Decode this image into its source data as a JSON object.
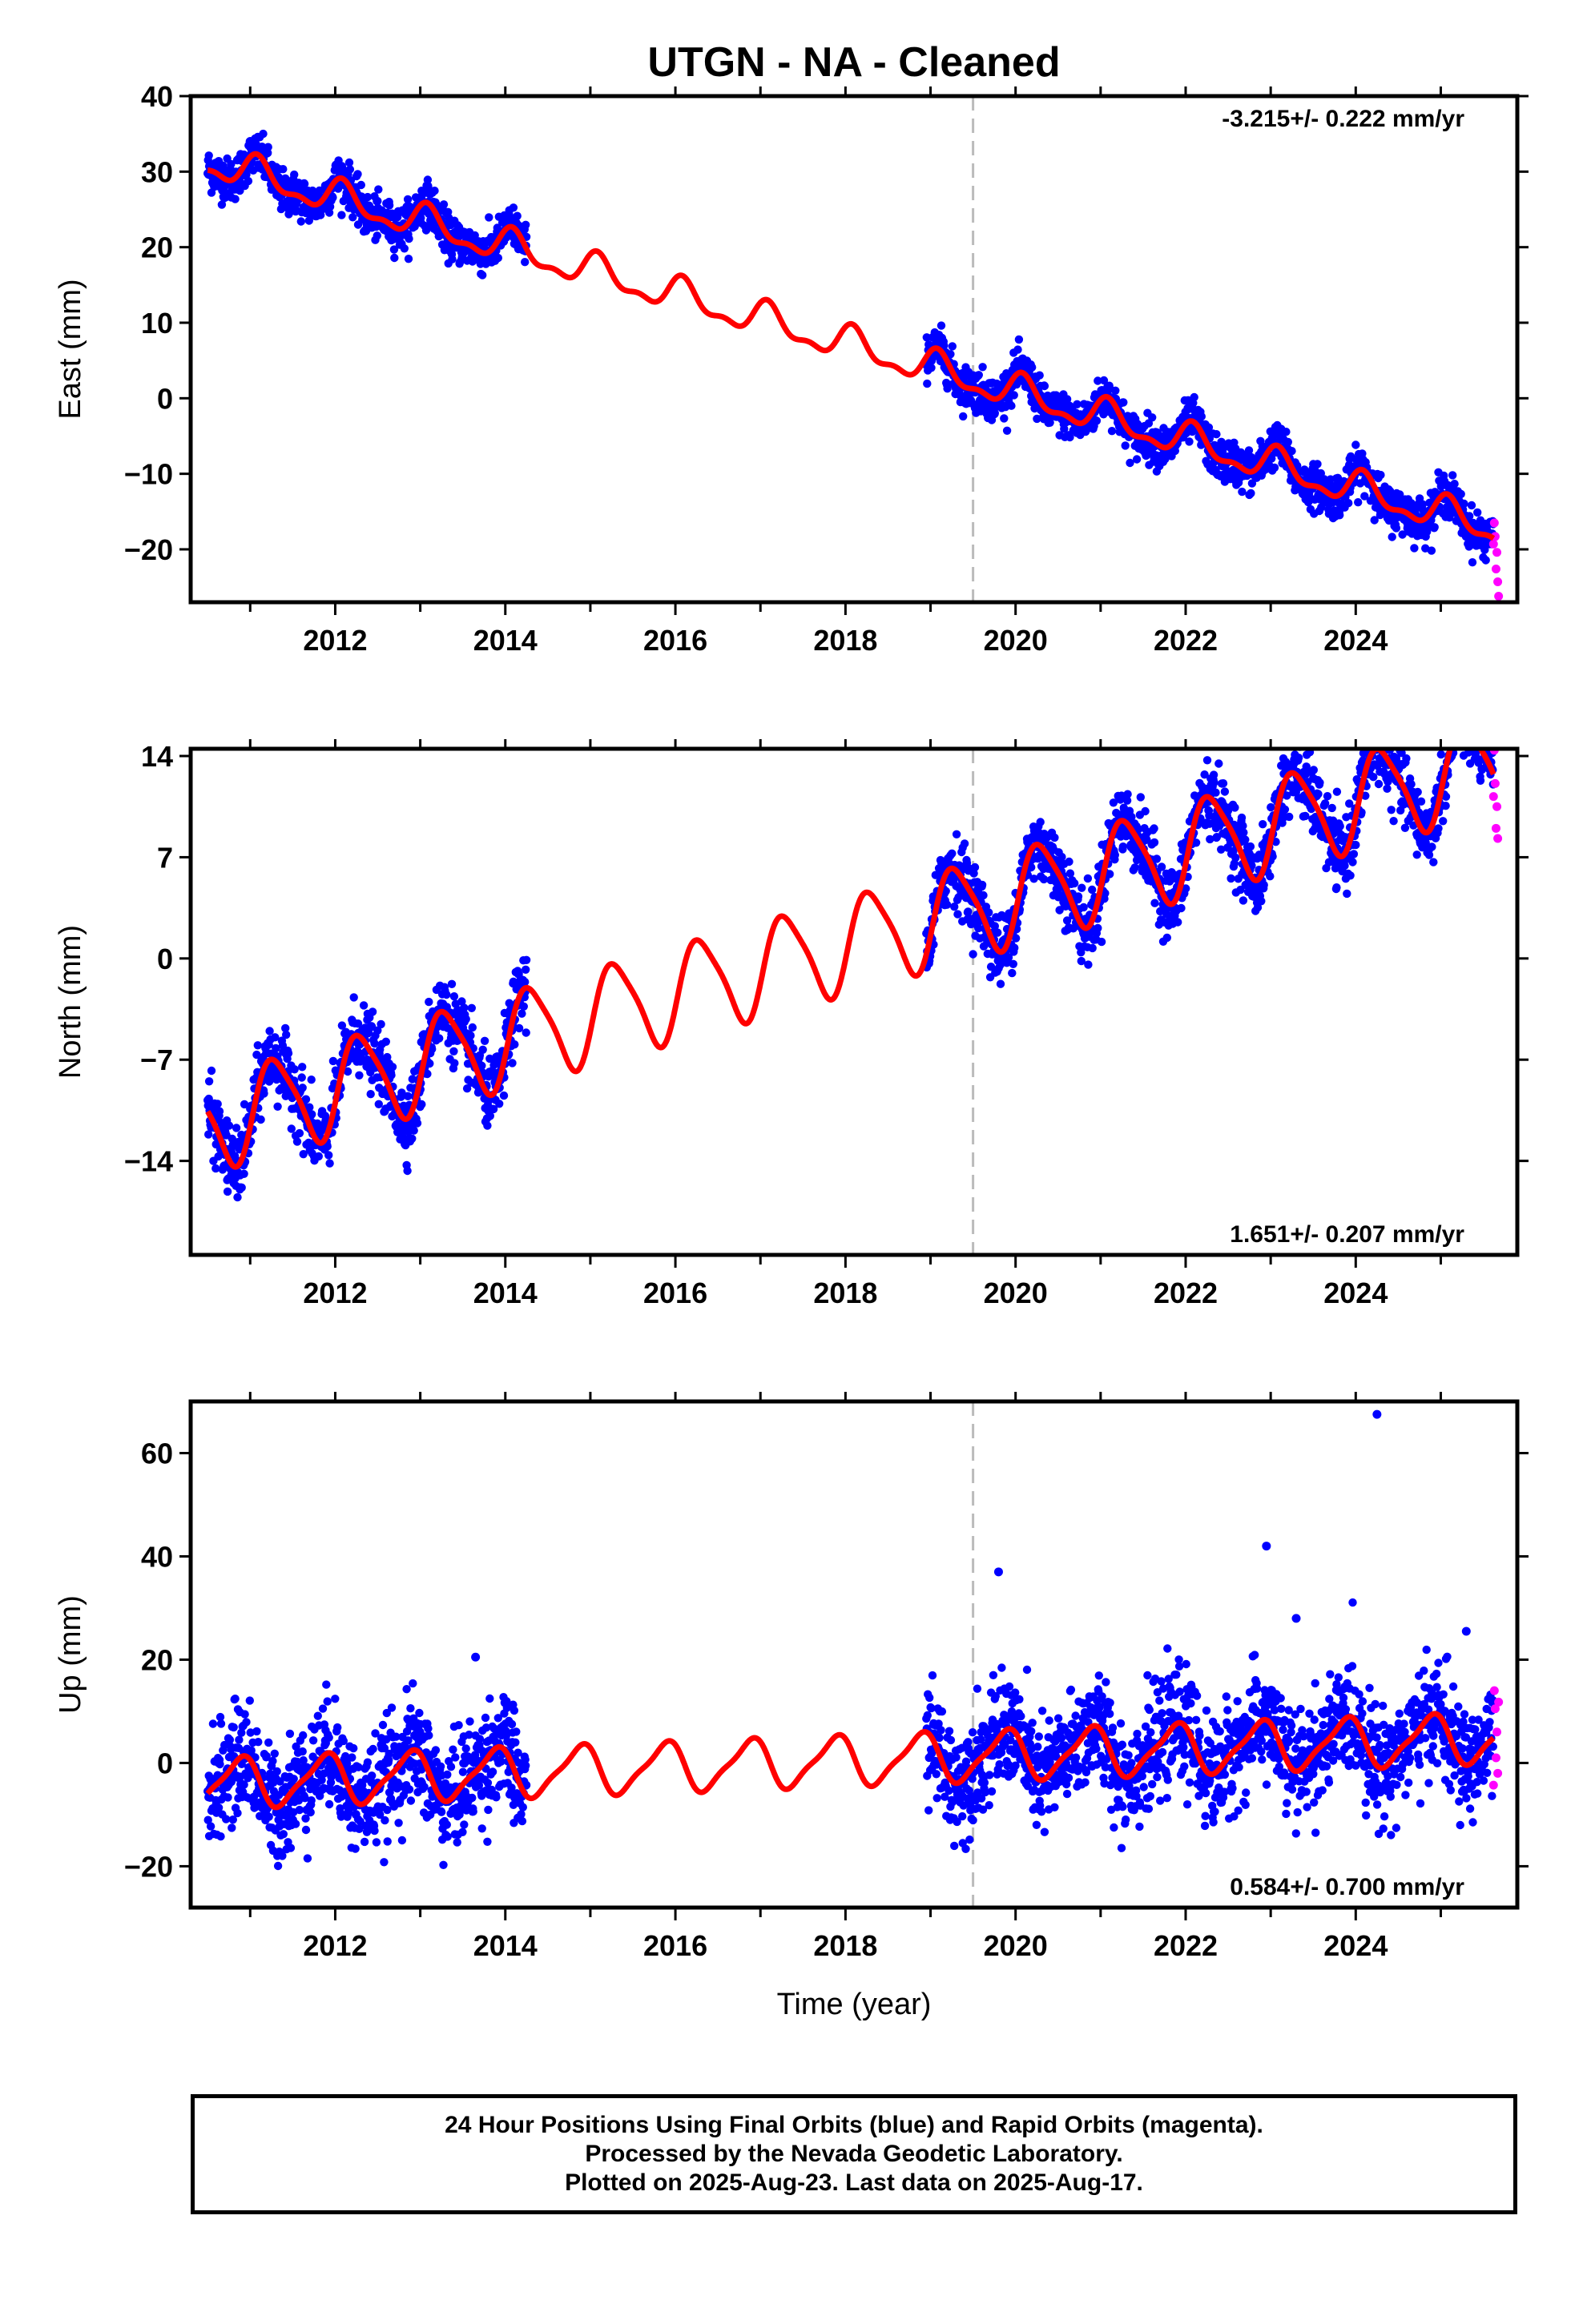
{
  "chart_data": {
    "type": "scatter",
    "title": "UTGN  - NA - Cleaned",
    "xlabel": "Time (year)",
    "xlim": [
      2010.3,
      2025.9
    ],
    "x_ticks": [
      2012,
      2014,
      2016,
      2018,
      2020,
      2022,
      2024
    ],
    "equipment_change_year": 2019.5,
    "data_gap": [
      2014.25,
      2018.95
    ],
    "colors": {
      "final_orbits": "#0000ff",
      "rapid_orbits": "#ff00ff",
      "model": "#ff0000",
      "marker_line": "#bbbbbb"
    },
    "panels": [
      {
        "ylabel": "East (mm)",
        "ylim": [
          -27,
          40
        ],
        "y_ticks": [
          -20,
          -10,
          0,
          10,
          20,
          30,
          40
        ],
        "velocity_label": "-3.215+/- 0.222 mm/yr",
        "velocity_label_position": "top-right",
        "model": {
          "t0": 2010.5,
          "y0": 31.3,
          "slope": -3.215,
          "annual_amp": 2.0,
          "annual_phase": 1.0,
          "semiannual_amp": 0.9,
          "offset_after": 0.0
        },
        "scatter_sd": 1.4,
        "rapid_points": [
          [
            2025.63,
            -16.5
          ],
          [
            2025.64,
            -18.3
          ],
          [
            2025.66,
            -20.4
          ],
          [
            2025.65,
            -22.6
          ],
          [
            2025.67,
            -24.3
          ],
          [
            2025.68,
            -26.2
          ],
          [
            2025.62,
            -19.3
          ]
        ]
      },
      {
        "ylabel": "North (mm)",
        "ylim": [
          -20.5,
          14.5
        ],
        "y_ticks": [
          -14,
          -7,
          0,
          7,
          14
        ],
        "velocity_label": "1.651+/- 0.207 mm/yr",
        "velocity_label_position": "bottom-right",
        "model": {
          "t0": 2010.5,
          "y0": -11.4,
          "slope": 1.651,
          "annual_amp": 3.2,
          "annual_phase": -0.3,
          "semiannual_amp": 0.6,
          "offset_after": 0.0
        },
        "scatter_sd": 1.2,
        "rapid_points": [
          [
            2025.63,
            14.4
          ],
          [
            2025.64,
            12.1
          ],
          [
            2025.66,
            10.5
          ],
          [
            2025.65,
            9.0
          ],
          [
            2025.67,
            8.3
          ],
          [
            2025.62,
            11.2
          ]
        ]
      },
      {
        "ylabel": "Up (mm)",
        "ylim": [
          -28,
          70
        ],
        "y_ticks": [
          -20,
          0,
          20,
          40,
          60
        ],
        "velocity_label": "0.584+/- 0.700 mm/yr",
        "velocity_label_position": "bottom-right",
        "model": {
          "t0": 2010.5,
          "y0": -4.0,
          "slope": 0.584,
          "annual_amp": 4.6,
          "annual_phase": 2.4,
          "semiannual_amp": 1.2,
          "offset_after": 0.0
        },
        "scatter_sd": 5.2,
        "rapid_points": [
          [
            2025.63,
            14.0
          ],
          [
            2025.64,
            10.5
          ],
          [
            2025.66,
            6.0
          ],
          [
            2025.65,
            1.0
          ],
          [
            2025.67,
            -2.0
          ],
          [
            2025.62,
            -4.3
          ],
          [
            2025.68,
            11.8
          ]
        ],
        "outliers": [
          [
            2024.25,
            67.5
          ],
          [
            2022.95,
            42.0
          ],
          [
            2019.8,
            37.0
          ],
          [
            2023.3,
            28.0
          ],
          [
            2025.3,
            25.5
          ],
          [
            2013.65,
            20.5
          ]
        ]
      }
    ]
  },
  "footer": {
    "line1": "24 Hour Positions Using Final Orbits (blue) and Rapid Orbits (magenta).",
    "line2": "Processed by the Nevada Geodetic Laboratory.",
    "line3": "Plotted on 2025-Aug-23. Last data on 2025-Aug-17."
  }
}
